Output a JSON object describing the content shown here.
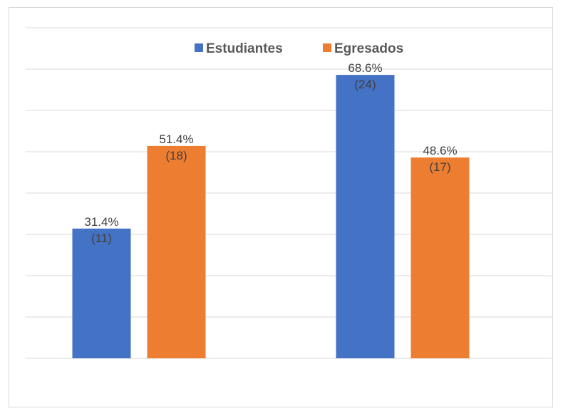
{
  "chart_data": {
    "type": "bar",
    "categories": [
      "",
      ""
    ],
    "series": [
      {
        "name": "Estudiantes",
        "color": "#4472C4",
        "values": [
          31.4,
          68.6
        ],
        "counts": [
          11,
          24
        ]
      },
      {
        "name": "Egresados",
        "color": "#ED7D31",
        "values": [
          51.4,
          48.6
        ],
        "counts": [
          18,
          17
        ]
      }
    ],
    "value_labels": [
      [
        "31.4%",
        "68.6%"
      ],
      [
        "51.4%",
        "48.6%"
      ]
    ],
    "count_labels": [
      [
        "(11)",
        "(24)"
      ],
      [
        "(18)",
        "(17)"
      ]
    ],
    "title": "",
    "xlabel": "",
    "ylabel": "",
    "ylim": [
      0,
      80
    ],
    "grid": true,
    "legend_position": "top"
  }
}
